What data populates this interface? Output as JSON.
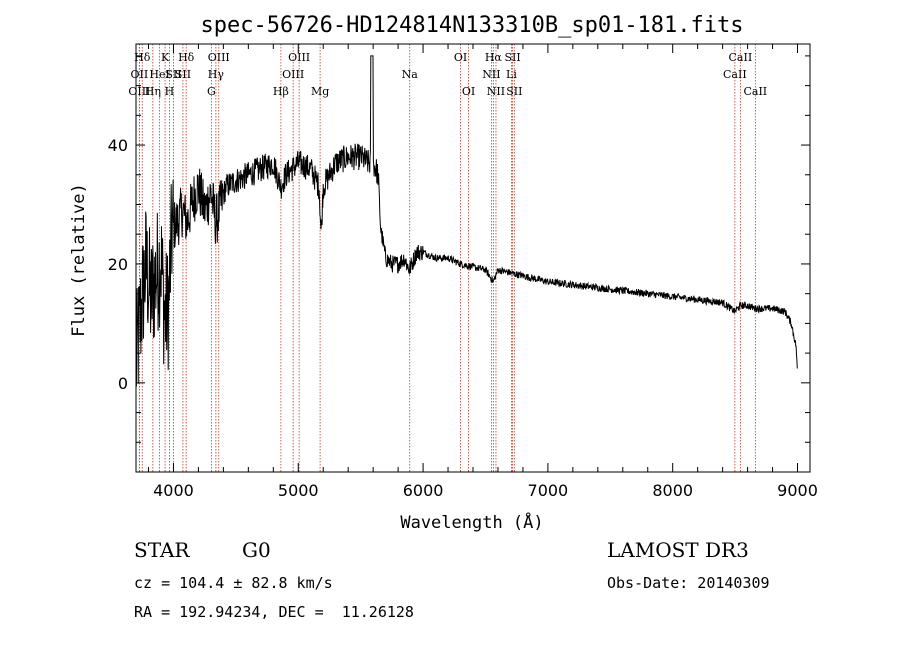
{
  "chart_data": {
    "type": "line",
    "title": "spec-56726-HD124814N133310B_sp01-181.fits",
    "xlabel": "Wavelength (Å)",
    "ylabel": "Flux (relative)",
    "xlim": [
      3700,
      9100
    ],
    "ylim": [
      -15,
      57
    ],
    "xticks": [
      4000,
      5000,
      6000,
      7000,
      8000,
      9000
    ],
    "yticks": [
      0,
      20,
      40
    ],
    "line_color": "#000000",
    "marker_color": "#c0392b",
    "spectrum_anchors": [
      [
        3700,
        3
      ],
      [
        3740,
        12
      ],
      [
        3780,
        20
      ],
      [
        3820,
        14
      ],
      [
        3860,
        18
      ],
      [
        3900,
        21
      ],
      [
        3930,
        11
      ],
      [
        3960,
        13
      ],
      [
        3990,
        26
      ],
      [
        4030,
        27
      ],
      [
        4070,
        29
      ],
      [
        4110,
        27
      ],
      [
        4160,
        31
      ],
      [
        4200,
        33
      ],
      [
        4250,
        29
      ],
      [
        4300,
        32
      ],
      [
        4340,
        27
      ],
      [
        4380,
        30
      ],
      [
        4420,
        33
      ],
      [
        4500,
        34
      ],
      [
        4600,
        35
      ],
      [
        4700,
        36
      ],
      [
        4800,
        37
      ],
      [
        4861,
        33
      ],
      [
        4900,
        35
      ],
      [
        5000,
        37
      ],
      [
        5100,
        36
      ],
      [
        5167,
        33
      ],
      [
        5183,
        25
      ],
      [
        5200,
        33
      ],
      [
        5300,
        37
      ],
      [
        5400,
        38
      ],
      [
        5500,
        38
      ],
      [
        5560,
        37
      ],
      [
        5600,
        37
      ],
      [
        5640,
        35
      ],
      [
        5660,
        26
      ],
      [
        5700,
        21
      ],
      [
        5750,
        20
      ],
      [
        5800,
        20
      ],
      [
        5850,
        21
      ],
      [
        5890,
        19
      ],
      [
        5950,
        22
      ],
      [
        6000,
        22
      ],
      [
        6100,
        21
      ],
      [
        6200,
        21
      ],
      [
        6300,
        20
      ],
      [
        6400,
        19.5
      ],
      [
        6500,
        19
      ],
      [
        6563,
        17
      ],
      [
        6600,
        19
      ],
      [
        6700,
        18.5
      ],
      [
        6800,
        18
      ],
      [
        7000,
        17
      ],
      [
        7200,
        16.5
      ],
      [
        7400,
        16
      ],
      [
        7600,
        15.5
      ],
      [
        7800,
        15
      ],
      [
        8000,
        14.5
      ],
      [
        8200,
        14
      ],
      [
        8400,
        13.5
      ],
      [
        8498,
        12
      ],
      [
        8542,
        13
      ],
      [
        8600,
        13
      ],
      [
        8662,
        12.5
      ],
      [
        8700,
        12.5
      ],
      [
        8800,
        12.5
      ],
      [
        8900,
        12
      ],
      [
        8950,
        10
      ],
      [
        8990,
        6
      ],
      [
        9000,
        1
      ]
    ],
    "lines": [
      {
        "label": "Hδ",
        "wl": 3750,
        "row": 0
      },
      {
        "label": "OII",
        "wl": 3727,
        "row": 1
      },
      {
        "label": "OIII",
        "wl": 3727,
        "row": 2
      },
      {
        "label": "K",
        "wl": 3933,
        "row": 0
      },
      {
        "label": "HeI",
        "wl": 3889,
        "row": 1
      },
      {
        "label": "Hη",
        "wl": 3835,
        "row": 2
      },
      {
        "label": "SII",
        "wl": 4000,
        "row": 1
      },
      {
        "label": "H",
        "wl": 3968,
        "row": 2
      },
      {
        "label": "Hδ",
        "wl": 4102,
        "row": 0
      },
      {
        "label": "SII",
        "wl": 4076,
        "row": 1
      },
      {
        "label": "OIII",
        "wl": 4363,
        "row": 0
      },
      {
        "label": "Hγ",
        "wl": 4340,
        "row": 1
      },
      {
        "label": "G",
        "wl": 4304,
        "row": 2
      },
      {
        "label": "Hβ",
        "wl": 4861,
        "row": 2
      },
      {
        "label": "OIII",
        "wl": 5007,
        "row": 0
      },
      {
        "label": "OIII",
        "wl": 4959,
        "row": 1
      },
      {
        "label": "Mg",
        "wl": 5175,
        "row": 2
      },
      {
        "label": "Na",
        "wl": 5893,
        "row": 1
      },
      {
        "label": "OI",
        "wl": 6300,
        "row": 0
      },
      {
        "label": "OI",
        "wl": 6364,
        "row": 2
      },
      {
        "label": "Hα",
        "wl": 6563,
        "row": 0
      },
      {
        "label": "NII",
        "wl": 6548,
        "row": 1
      },
      {
        "label": "NII",
        "wl": 6584,
        "row": 2
      },
      {
        "label": "SII",
        "wl": 6717,
        "row": 0
      },
      {
        "label": "Li",
        "wl": 6708,
        "row": 1
      },
      {
        "label": "SII",
        "wl": 6731,
        "row": 2
      },
      {
        "label": "CaII",
        "wl": 8542,
        "row": 0
      },
      {
        "label": "CaII",
        "wl": 8498,
        "row": 1
      },
      {
        "label": "CaII",
        "wl": 8662,
        "row": 2
      }
    ]
  },
  "info": {
    "class": "STAR",
    "subclass": "G0",
    "survey": "LAMOST DR3",
    "cz": "cz = 104.4 ± 82.8 km/s",
    "obs_date": "Obs-Date: 20140309",
    "coords": "RA = 192.94234, DEC =  11.26128"
  }
}
